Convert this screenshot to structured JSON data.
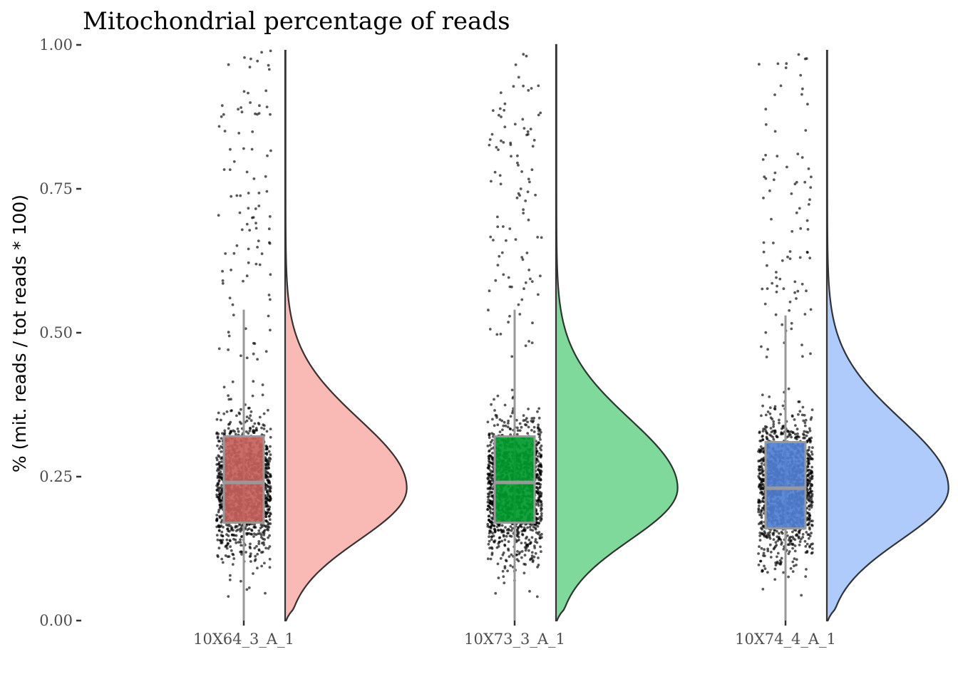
{
  "chart_data": {
    "type": "raincloud",
    "title": "Mitochondrial percentage of reads",
    "ylabel": "% (mit. reads / tot reads * 100)",
    "xlabel": "",
    "ylim": [
      0,
      1
    ],
    "yticks": [
      "0.00",
      "0.25",
      "0.50",
      "0.75",
      "1.00"
    ],
    "grid": false,
    "legend": "none",
    "categories": [
      "10X64_3_A_1",
      "10X73_3_A_1",
      "10X74_4_A_1"
    ],
    "series": [
      {
        "category": "10X64_3_A_1",
        "color": "#c5605a",
        "density_fill": "#f9bab6",
        "box": {
          "q1": 0.17,
          "median": 0.24,
          "q3": 0.32,
          "whisker_low": 0.0,
          "whisker_high": 0.54
        },
        "density_peak": 0.23,
        "max": 0.99
      },
      {
        "category": "10X73_3_A_1",
        "color": "#009a2c",
        "density_fill": "#7fd99a",
        "box": {
          "q1": 0.17,
          "median": 0.24,
          "q3": 0.32,
          "whisker_low": 0.0,
          "whisker_high": 0.54
        },
        "density_peak": 0.23,
        "max": 1.0
      },
      {
        "category": "10X74_4_A_1",
        "color": "#4f7fd4",
        "density_fill": "#afcbfc",
        "box": {
          "q1": 0.16,
          "median": 0.23,
          "q3": 0.31,
          "whisker_low": 0.0,
          "whisker_high": 0.53
        },
        "density_peak": 0.23,
        "max": 0.99
      }
    ]
  }
}
